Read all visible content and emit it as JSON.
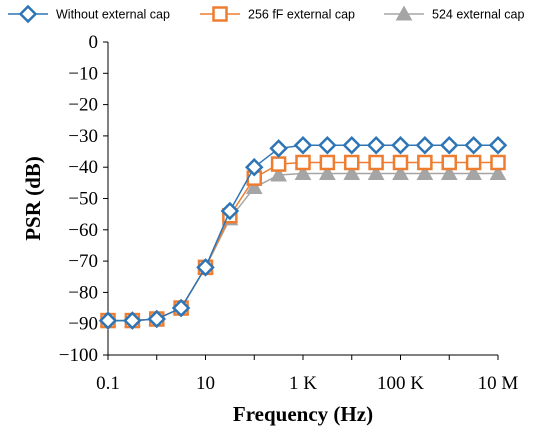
{
  "chart_data": {
    "type": "line",
    "x_scale": "log",
    "x": [
      0.1,
      0.316,
      1,
      3.16,
      10,
      31.6,
      100,
      316,
      1000,
      3160,
      10000,
      31600,
      100000,
      316000,
      1000000,
      3160000,
      10000000
    ],
    "x_ticks": [
      0.1,
      10,
      1000,
      100000,
      10000000
    ],
    "x_tick_labels": [
      "0.1",
      "10",
      "1 K",
      "100 K",
      "10 M"
    ],
    "xlim": [
      0.1,
      10000000
    ],
    "ylim": [
      -100,
      0
    ],
    "y_ticks": [
      0,
      -10,
      -20,
      -30,
      -40,
      -50,
      -60,
      -70,
      -80,
      -90,
      -100
    ],
    "xlabel": "Frequency (Hz)",
    "ylabel": "PSR (dB)",
    "legend_position": "top",
    "grid": false,
    "series": [
      {
        "name": "Without external cap",
        "color": "#2e75b6",
        "marker": "diamond",
        "values": [
          -89,
          -89,
          -88.5,
          -85,
          -72,
          -54,
          -40,
          -34,
          -33,
          -33,
          -33,
          -33,
          -33,
          -33,
          -33,
          -33,
          -33
        ]
      },
      {
        "name": "256 fF external cap",
        "color": "#ed7d31",
        "marker": "square",
        "values": [
          -89,
          -89,
          -88.5,
          -85,
          -72,
          -55.5,
          -43.5,
          -39,
          -38.5,
          -38.5,
          -38.5,
          -38.5,
          -38.5,
          -38.5,
          -38.5,
          -38.5,
          -38.5
        ]
      },
      {
        "name": "524 external cap",
        "color": "#a5a5a5",
        "marker": "triangle",
        "values": [
          -89,
          -89,
          -88.5,
          -85,
          -72,
          -56.5,
          -46.5,
          -42.5,
          -42,
          -42,
          -42,
          -42,
          -42,
          -42,
          -42,
          -42,
          -42
        ]
      }
    ]
  }
}
